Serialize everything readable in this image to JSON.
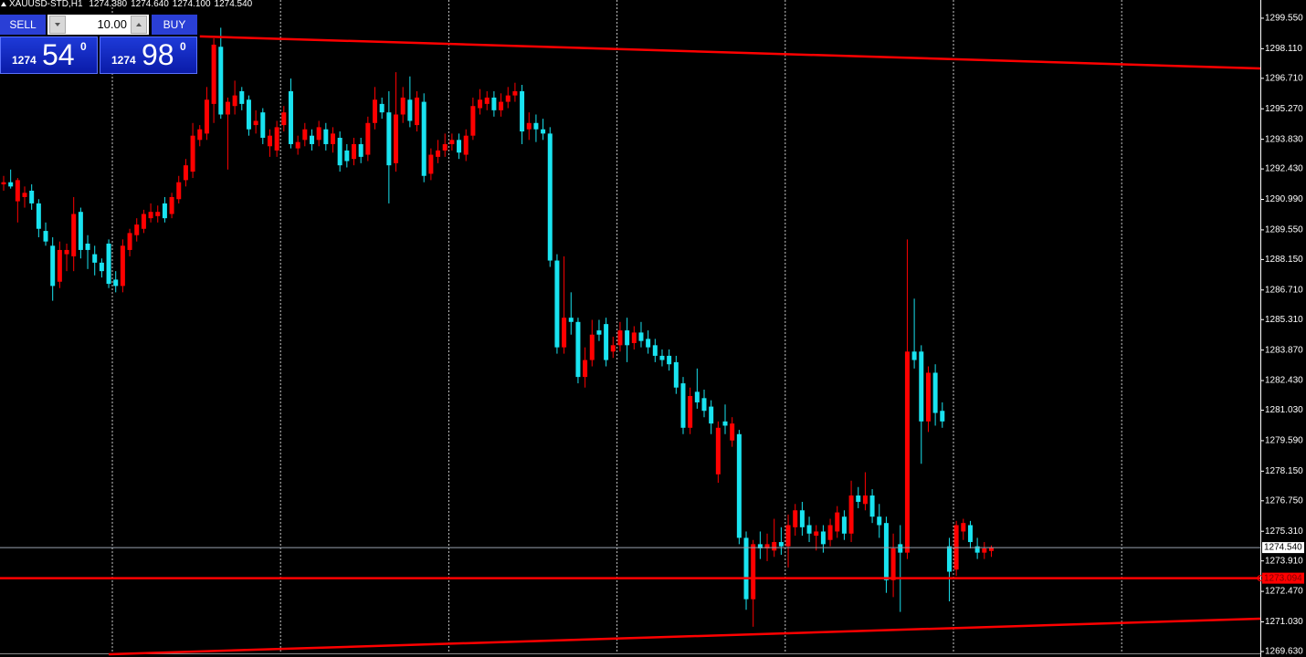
{
  "header": {
    "symbol": "XAUUSD-STD,H1",
    "quote": [
      "1274.380",
      "1274.640",
      "1274.100",
      "1274.540"
    ]
  },
  "trade_panel": {
    "sell": "SELL",
    "buy": "BUY",
    "lots": "10.00",
    "sell_price": {
      "big": "1274",
      "pips": "54",
      "fraction": "0"
    },
    "buy_price": {
      "big": "1274",
      "pips": "98",
      "fraction": "0"
    }
  },
  "chart_data": {
    "type": "candlestick",
    "bull_color": "#ff0000",
    "bear_color": "#19e3f0",
    "ylim": [
      1269.37,
      1300.41
    ],
    "yticks": [
      {
        "value": 1299.55,
        "label": "1299.550"
      },
      {
        "value": 1298.11,
        "label": "1298.110"
      },
      {
        "value": 1296.71,
        "label": "1296.710"
      },
      {
        "value": 1295.27,
        "label": "1295.270"
      },
      {
        "value": 1293.83,
        "label": "1293.830"
      },
      {
        "value": 1292.43,
        "label": "1292.430"
      },
      {
        "value": 1290.99,
        "label": "1290.990"
      },
      {
        "value": 1289.55,
        "label": "1289.550"
      },
      {
        "value": 1288.15,
        "label": "1288.150"
      },
      {
        "value": 1286.71,
        "label": "1286.710"
      },
      {
        "value": 1285.31,
        "label": "1285.310"
      },
      {
        "value": 1283.87,
        "label": "1283.870"
      },
      {
        "value": 1282.43,
        "label": "1282.430"
      },
      {
        "value": 1281.03,
        "label": "1281.030"
      },
      {
        "value": 1279.59,
        "label": "1279.590"
      },
      {
        "value": 1278.15,
        "label": "1278.150"
      },
      {
        "value": 1276.75,
        "label": "1276.750"
      },
      {
        "value": 1275.31,
        "label": "1275.310"
      },
      {
        "value": 1273.91,
        "label": "1273.910"
      },
      {
        "value": 1272.47,
        "label": "1272.470"
      },
      {
        "value": 1271.03,
        "label": "1271.030"
      },
      {
        "value": 1269.63,
        "label": "1269.630"
      }
    ],
    "current_price": {
      "value": 1274.54,
      "label": "1274.540"
    },
    "level": {
      "value": 1273.094,
      "label": "1273.094",
      "color": "#ff0000"
    },
    "trendlines": [
      {
        "x": [
          28,
          141
        ],
        "values": [
          1298.69,
          1297.56
        ],
        "color": "#ff0000"
      },
      {
        "x": [
          15,
          141
        ],
        "values": [
          1269.5,
          1270.79
        ],
        "color": "#ff0000"
      }
    ],
    "candles": [
      [
        1291.7,
        1292.1,
        1291.4,
        1291.8
      ],
      [
        1291.8,
        1292.4,
        1291.5,
        1291.6
      ],
      [
        1290.9,
        1292.0,
        1289.9,
        1291.9
      ],
      [
        1291.1,
        1291.6,
        1290.6,
        1291.3
      ],
      [
        1291.4,
        1291.7,
        1290.5,
        1290.8
      ],
      [
        1290.8,
        1291.0,
        1289.2,
        1289.6
      ],
      [
        1289.5,
        1289.9,
        1288.8,
        1289.0
      ],
      [
        1288.8,
        1289.2,
        1286.2,
        1286.9
      ],
      [
        1287.1,
        1289.0,
        1286.8,
        1288.6
      ],
      [
        1288.4,
        1288.9,
        1287.6,
        1288.6
      ],
      [
        1288.3,
        1291.1,
        1287.6,
        1290.3
      ],
      [
        1290.4,
        1290.6,
        1288.2,
        1288.6
      ],
      [
        1288.9,
        1289.3,
        1287.7,
        1288.6
      ],
      [
        1288.4,
        1288.8,
        1287.4,
        1288.0
      ],
      [
        1288.0,
        1288.2,
        1287.3,
        1287.6
      ],
      [
        1288.9,
        1289.1,
        1286.8,
        1287.0
      ],
      [
        1287.2,
        1287.6,
        1286.6,
        1286.9
      ],
      [
        1286.9,
        1289.1,
        1286.6,
        1288.8
      ],
      [
        1288.6,
        1289.6,
        1288.3,
        1289.4
      ],
      [
        1289.3,
        1290.1,
        1289.0,
        1289.8
      ],
      [
        1289.6,
        1290.5,
        1289.4,
        1290.3
      ],
      [
        1290.1,
        1290.8,
        1289.9,
        1290.4
      ],
      [
        1290.2,
        1290.7,
        1289.9,
        1290.4
      ],
      [
        1290.8,
        1291.1,
        1289.9,
        1290.1
      ],
      [
        1290.3,
        1291.3,
        1290.1,
        1291.1
      ],
      [
        1291.0,
        1292.1,
        1290.8,
        1291.8
      ],
      [
        1291.9,
        1292.9,
        1291.6,
        1292.6
      ],
      [
        1292.3,
        1294.6,
        1292.0,
        1294.0
      ],
      [
        1293.8,
        1294.5,
        1293.5,
        1294.3
      ],
      [
        1294.1,
        1296.3,
        1293.8,
        1295.7
      ],
      [
        1295.5,
        1298.6,
        1294.6,
        1298.3
      ],
      [
        1298.2,
        1299.1,
        1294.8,
        1295.0
      ],
      [
        1295.0,
        1295.8,
        1292.4,
        1295.6
      ],
      [
        1295.4,
        1296.6,
        1295.0,
        1295.9
      ],
      [
        1296.1,
        1296.3,
        1295.2,
        1295.5
      ],
      [
        1295.7,
        1295.9,
        1294.0,
        1294.3
      ],
      [
        1294.5,
        1295.2,
        1294.1,
        1294.7
      ],
      [
        1295.1,
        1295.3,
        1293.6,
        1293.9
      ],
      [
        1293.5,
        1294.3,
        1293.0,
        1294.0
      ],
      [
        1293.3,
        1294.7,
        1293.0,
        1294.4
      ],
      [
        1294.5,
        1295.4,
        1294.2,
        1295.1
      ],
      [
        1296.1,
        1296.7,
        1293.4,
        1293.6
      ],
      [
        1293.4,
        1294.0,
        1293.1,
        1293.7
      ],
      [
        1293.8,
        1294.6,
        1293.5,
        1294.3
      ],
      [
        1294.0,
        1294.3,
        1293.3,
        1293.6
      ],
      [
        1293.8,
        1294.7,
        1293.5,
        1294.4
      ],
      [
        1294.3,
        1294.6,
        1293.3,
        1293.6
      ],
      [
        1293.6,
        1294.4,
        1293.2,
        1294.1
      ],
      [
        1293.9,
        1294.2,
        1292.3,
        1292.6
      ],
      [
        1293.3,
        1293.6,
        1292.5,
        1292.8
      ],
      [
        1292.9,
        1293.9,
        1292.6,
        1293.6
      ],
      [
        1293.6,
        1293.9,
        1292.7,
        1293.0
      ],
      [
        1293.1,
        1294.9,
        1292.8,
        1294.6
      ],
      [
        1294.6,
        1296.3,
        1294.3,
        1295.7
      ],
      [
        1295.5,
        1295.8,
        1294.8,
        1295.1
      ],
      [
        1295.1,
        1296.1,
        1290.8,
        1292.6
      ],
      [
        1292.7,
        1297.0,
        1292.3,
        1295.0
      ],
      [
        1295.0,
        1296.3,
        1294.6,
        1295.8
      ],
      [
        1295.7,
        1296.8,
        1294.4,
        1294.7
      ],
      [
        1294.5,
        1296.1,
        1294.2,
        1295.8
      ],
      [
        1295.6,
        1296.0,
        1291.8,
        1292.1
      ],
      [
        1292.2,
        1293.4,
        1291.9,
        1293.1
      ],
      [
        1293.0,
        1293.8,
        1292.7,
        1293.3
      ],
      [
        1293.3,
        1294.1,
        1293.0,
        1293.6
      ],
      [
        1293.6,
        1294.1,
        1293.3,
        1293.8
      ],
      [
        1293.8,
        1294.1,
        1292.9,
        1293.2
      ],
      [
        1293.1,
        1294.3,
        1292.8,
        1294.0
      ],
      [
        1294.0,
        1295.8,
        1293.8,
        1295.4
      ],
      [
        1295.3,
        1296.2,
        1295.0,
        1295.7
      ],
      [
        1295.5,
        1296.1,
        1295.2,
        1295.8
      ],
      [
        1295.8,
        1296.1,
        1294.9,
        1295.2
      ],
      [
        1295.2,
        1296.0,
        1294.9,
        1295.6
      ],
      [
        1295.6,
        1296.3,
        1295.3,
        1295.9
      ],
      [
        1295.9,
        1296.5,
        1295.6,
        1296.1
      ],
      [
        1296.1,
        1296.4,
        1293.6,
        1294.2
      ],
      [
        1294.3,
        1295.1,
        1293.8,
        1294.6
      ],
      [
        1294.6,
        1295.0,
        1293.7,
        1294.3
      ],
      [
        1294.3,
        1294.8,
        1293.8,
        1294.1
      ],
      [
        1294.1,
        1294.4,
        1287.8,
        1288.1
      ],
      [
        1288.1,
        1288.4,
        1283.7,
        1284.0
      ],
      [
        1284.0,
        1288.3,
        1283.7,
        1285.4
      ],
      [
        1285.4,
        1286.6,
        1284.6,
        1285.2
      ],
      [
        1285.2,
        1285.4,
        1282.3,
        1282.6
      ],
      [
        1282.6,
        1284.0,
        1282.1,
        1283.4
      ],
      [
        1283.4,
        1285.3,
        1283.1,
        1284.6
      ],
      [
        1284.8,
        1285.3,
        1284.3,
        1284.6
      ],
      [
        1285.1,
        1285.4,
        1283.1,
        1283.4
      ],
      [
        1283.8,
        1284.5,
        1283.5,
        1284.1
      ],
      [
        1284.1,
        1285.2,
        1283.8,
        1284.8
      ],
      [
        1284.8,
        1285.4,
        1283.3,
        1284.1
      ],
      [
        1284.2,
        1285.0,
        1283.9,
        1284.7
      ],
      [
        1284.7,
        1285.2,
        1284.0,
        1284.3
      ],
      [
        1284.4,
        1284.8,
        1283.7,
        1284.0
      ],
      [
        1284.1,
        1284.4,
        1283.3,
        1283.6
      ],
      [
        1283.6,
        1283.9,
        1283.1,
        1283.4
      ],
      [
        1283.6,
        1283.9,
        1282.9,
        1283.2
      ],
      [
        1283.3,
        1283.6,
        1281.8,
        1282.1
      ],
      [
        1282.3,
        1282.6,
        1279.9,
        1280.2
      ],
      [
        1280.2,
        1282.1,
        1279.9,
        1281.7
      ],
      [
        1281.9,
        1283.0,
        1281.1,
        1281.4
      ],
      [
        1281.6,
        1282.0,
        1280.7,
        1281.0
      ],
      [
        1281.2,
        1281.5,
        1279.9,
        1280.4
      ],
      [
        1278.0,
        1280.5,
        1277.6,
        1280.2
      ],
      [
        1280.5,
        1281.3,
        1279.9,
        1280.3
      ],
      [
        1279.6,
        1280.7,
        1279.3,
        1280.4
      ],
      [
        1279.9,
        1280.1,
        1274.7,
        1275.0
      ],
      [
        1275.0,
        1275.3,
        1271.6,
        1272.1
      ],
      [
        1272.1,
        1274.9,
        1270.8,
        1274.7
      ],
      [
        1274.7,
        1275.3,
        1274.0,
        1274.5
      ],
      [
        1274.5,
        1275.2,
        1273.9,
        1274.7
      ],
      [
        1274.4,
        1275.9,
        1274.1,
        1274.8
      ],
      [
        1274.8,
        1275.5,
        1274.2,
        1274.6
      ],
      [
        1274.6,
        1276.1,
        1273.6,
        1275.6
      ],
      [
        1275.5,
        1276.6,
        1275.1,
        1276.3
      ],
      [
        1276.3,
        1276.7,
        1275.1,
        1275.5
      ],
      [
        1275.6,
        1276.0,
        1274.8,
        1275.2
      ],
      [
        1275.1,
        1275.6,
        1274.4,
        1275.3
      ],
      [
        1275.3,
        1275.6,
        1274.3,
        1274.7
      ],
      [
        1274.9,
        1275.9,
        1274.6,
        1275.6
      ],
      [
        1275.3,
        1276.5,
        1275.0,
        1276.2
      ],
      [
        1276.0,
        1276.3,
        1274.9,
        1275.2
      ],
      [
        1275.2,
        1277.7,
        1274.8,
        1277.0
      ],
      [
        1277.0,
        1277.4,
        1276.4,
        1276.7
      ],
      [
        1276.6,
        1278.1,
        1276.3,
        1277.0
      ],
      [
        1277.0,
        1277.3,
        1275.7,
        1276.0
      ],
      [
        1276.0,
        1276.6,
        1275.0,
        1275.6
      ],
      [
        1275.7,
        1276.0,
        1272.4,
        1273.0
      ],
      [
        1273.0,
        1275.2,
        1272.2,
        1274.5
      ],
      [
        1274.7,
        1275.6,
        1271.5,
        1274.3
      ],
      [
        1274.3,
        1289.1,
        1274.0,
        1283.8
      ],
      [
        1283.8,
        1286.3,
        1283.0,
        1283.4
      ],
      [
        1283.8,
        1284.1,
        1278.5,
        1280.5
      ],
      [
        1280.5,
        1283.1,
        1280.0,
        1282.8
      ],
      [
        1282.8,
        1283.2,
        1280.3,
        1280.9
      ],
      [
        1281.0,
        1281.4,
        1280.2,
        1280.5
      ],
      [
        1274.6,
        1275.0,
        1272.0,
        1273.4
      ],
      [
        1273.5,
        1275.8,
        1273.2,
        1275.6
      ],
      [
        1275.3,
        1275.9,
        1274.9,
        1275.7
      ],
      [
        1275.6,
        1275.8,
        1274.5,
        1274.8
      ],
      [
        1274.6,
        1275.0,
        1274.0,
        1274.3
      ],
      [
        1274.3,
        1274.8,
        1274.0,
        1274.5
      ],
      [
        1274.38,
        1274.64,
        1274.1,
        1274.54
      ]
    ]
  }
}
